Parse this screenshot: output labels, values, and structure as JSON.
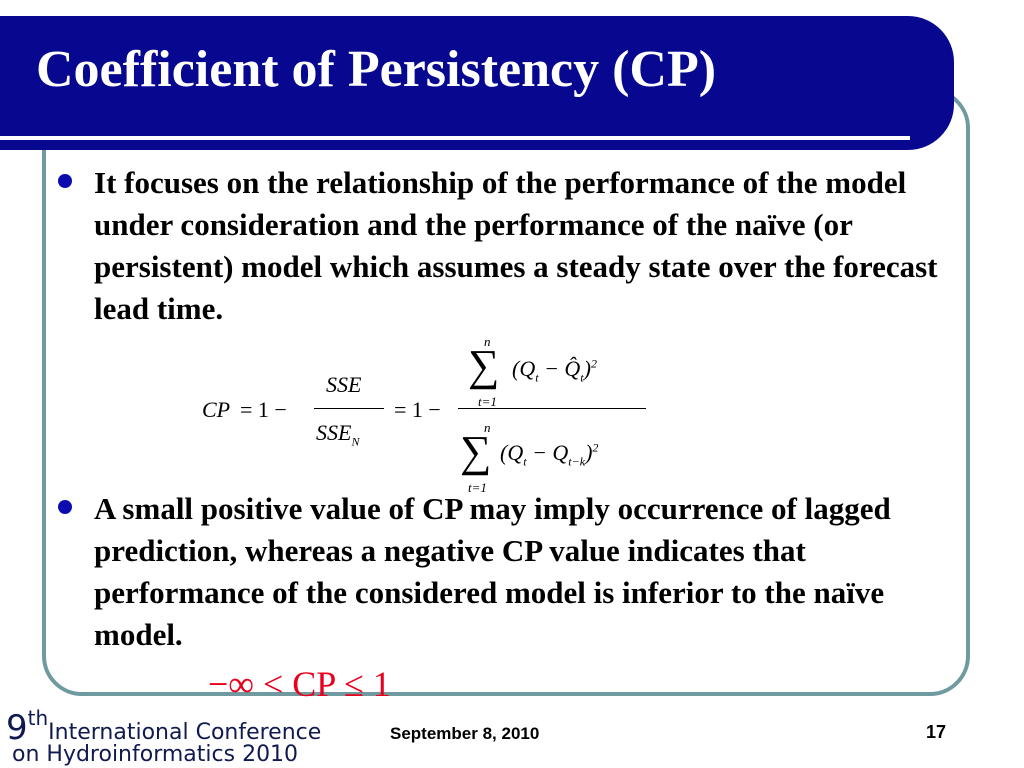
{
  "title": "Coefficient of Persistency (CP)",
  "bullets": [
    "It focuses on the relationship of the performance of the model under consideration and the performance of the naïve (or persistent) model which assumes a steady state over the forecast lead time.",
    "A small positive value of CP may imply occurrence of lagged prediction, whereas a negative CP value indicates that performance of the considered model is inferior to the naïve model."
  ],
  "equation": {
    "lhs": "CP",
    "eq1": "= 1 −",
    "num1": "SSE",
    "den1": "SSE",
    "den1_sub": "N",
    "eq2": "= 1 −",
    "sum_upper": "n",
    "sum_lower": "t=1",
    "num2": "(Q",
    "num2_sub": "t",
    "num2_mid": " − Q̂",
    "num2_sub2": "t",
    "num2_end": ")",
    "sq": "2",
    "den2": "(Q",
    "den2_sub": "t",
    "den2_mid": " − Q",
    "den2_sub2": "t−k",
    "den2_end": ")"
  },
  "inequality": "−∞ < CP ≤ 1",
  "footer": {
    "logo_num": "9",
    "logo_sup": "th",
    "logo_line1": "International Conference",
    "logo_line2": "on Hydroinformatics 2010",
    "date": "September 8, 2010",
    "page": "17"
  },
  "colors": {
    "title_bar": "#07088f",
    "frame": "#6f9a9f",
    "bullet": "#0b0bb0",
    "inequality": "#e8001c"
  }
}
